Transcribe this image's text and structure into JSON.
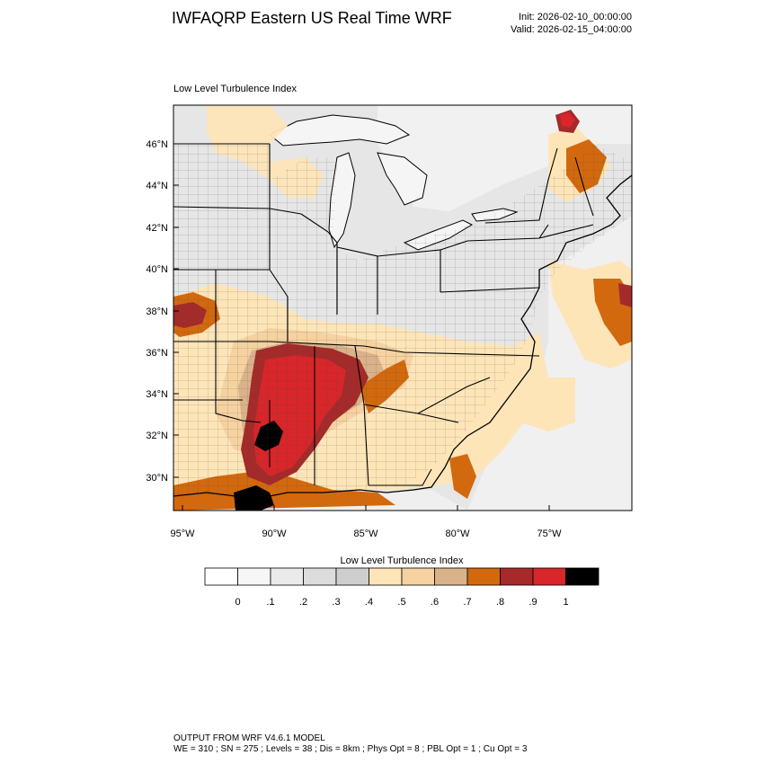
{
  "header": {
    "title": "IWFAQRP Eastern US Real Time WRF",
    "init": "Init: 2026-02-10_00:00:00",
    "valid": "Valid: 2026-02-15_04:00:00"
  },
  "map": {
    "subtitle": "Low Level Turbulence Index",
    "projection": "lat-lon",
    "lat_ticks": [
      "30°N",
      "32°N",
      "34°N",
      "36°N",
      "38°N",
      "40°N",
      "42°N",
      "44°N",
      "46°N"
    ],
    "lon_ticks": [
      "95°W",
      "90°W",
      "85°W",
      "80°W",
      "75°W"
    ],
    "field": "Low Level Turbulence Index",
    "hotspots": [
      {
        "region": "Mississippi / Alabama / Tennessee",
        "level": "0.8-1.0"
      },
      {
        "region": "Central Mississippi / Louisiana",
        "level": ">1"
      },
      {
        "region": "Northern Maine",
        "level": "0.8-0.9"
      },
      {
        "region": "Missouri / Arkansas border",
        "level": "0.7-0.8"
      },
      {
        "region": "Western Atlantic offshore",
        "level": "0.7-0.8"
      }
    ]
  },
  "colorbar": {
    "title": "Low Level Turbulence Index",
    "tick_labels": [
      "0",
      ".1",
      ".2",
      ".3",
      ".4",
      ".5",
      ".6",
      ".7",
      ".8",
      ".9",
      "1"
    ],
    "colors": [
      "#ffffff",
      "#f6f6f6",
      "#eaeaea",
      "#dcdcdc",
      "#cecece",
      "#fde5b8",
      "#f5d2a0",
      "#d9b28a",
      "#d2690e",
      "#a52a2a",
      "#d8262a",
      "#000000"
    ]
  },
  "footer": {
    "line1": "OUTPUT FROM WRF V4.6.1 MODEL",
    "line2": "WE = 310 ; SN = 275 ; Levels = 38 ; Dis = 8km ; Phys Opt = 8 ; PBL Opt = 1 ; Cu Opt = 3"
  }
}
